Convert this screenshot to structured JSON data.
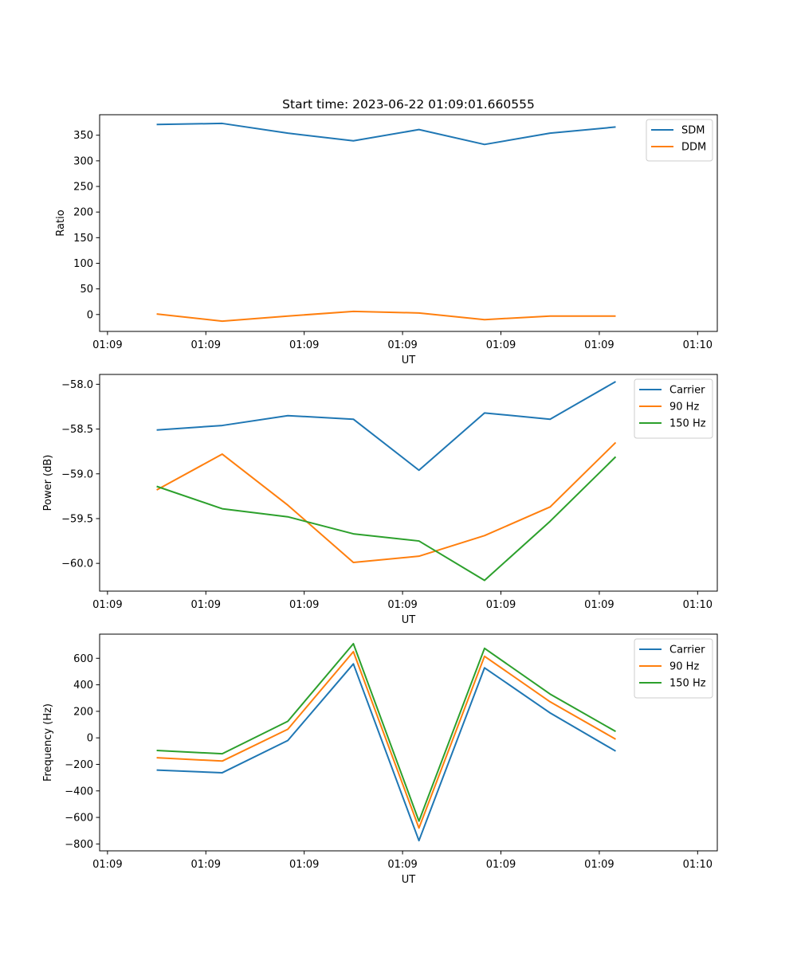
{
  "figure_title": "Start time: 2023-06-22 01:09:01.660555",
  "chart_data": [
    {
      "type": "line",
      "title": "Start time: 2023-06-22 01:09:01.660555",
      "xlabel": "UT",
      "ylabel": "Ratio",
      "x_tick_labels": [
        "01:09",
        "01:09",
        "01:09",
        "01:09",
        "01:09",
        "01:09",
        "01:10"
      ],
      "y_ticks": [
        0,
        50,
        100,
        150,
        200,
        250,
        300,
        350
      ],
      "y_tick_labels": [
        "0",
        "50",
        "100",
        "150",
        "200",
        "250",
        "300",
        "350"
      ],
      "xlim": [
        -0.12,
        9.3
      ],
      "ylim": [
        -33,
        390
      ],
      "x_tick_positions": [
        0,
        1.5,
        3,
        4.5,
        6,
        7.5,
        9
      ],
      "x": [
        0.75,
        1.75,
        2.75,
        3.75,
        4.75,
        5.75,
        6.75,
        7.75
      ],
      "legend_position": "upper right",
      "grid": false,
      "series": [
        {
          "name": "SDM",
          "color": "#1f77b4",
          "values": [
            371,
            373,
            354,
            339,
            361,
            332,
            354,
            366
          ]
        },
        {
          "name": "DDM",
          "color": "#ff7f0e",
          "values": [
            1,
            -13,
            -3,
            6,
            3,
            -10,
            -3,
            -3
          ]
        }
      ]
    },
    {
      "type": "line",
      "title": "",
      "xlabel": "UT",
      "ylabel": "Power (dB)",
      "x_tick_labels": [
        "01:09",
        "01:09",
        "01:09",
        "01:09",
        "01:09",
        "01:09",
        "01:10"
      ],
      "y_ticks": [
        -60.0,
        -59.5,
        -59.0,
        -58.5,
        -58.0
      ],
      "y_tick_labels": [
        "−60.0",
        "−59.5",
        "−59.0",
        "−58.5",
        "−58.0"
      ],
      "xlim": [
        -0.12,
        9.3
      ],
      "ylim": [
        -60.31,
        -57.89
      ],
      "x_tick_positions": [
        0,
        1.5,
        3,
        4.5,
        6,
        7.5,
        9
      ],
      "x": [
        0.75,
        1.75,
        2.75,
        3.75,
        4.75,
        5.75,
        6.75,
        7.75
      ],
      "legend_position": "upper right",
      "grid": false,
      "series": [
        {
          "name": "Carrier",
          "color": "#1f77b4",
          "values": [
            -58.51,
            -58.46,
            -58.35,
            -58.39,
            -58.96,
            -58.32,
            -58.39,
            -57.97
          ]
        },
        {
          "name": "90 Hz",
          "color": "#ff7f0e",
          "values": [
            -59.18,
            -58.78,
            -59.35,
            -59.99,
            -59.92,
            -59.69,
            -59.37,
            -58.65
          ]
        },
        {
          "name": "150 Hz",
          "color": "#2ca02c",
          "values": [
            -59.14,
            -59.39,
            -59.48,
            -59.67,
            -59.75,
            -60.19,
            -59.53,
            -58.81
          ]
        }
      ]
    },
    {
      "type": "line",
      "title": "",
      "xlabel": "UT",
      "ylabel": "Frequency (Hz)",
      "x_tick_labels": [
        "01:09",
        "01:09",
        "01:09",
        "01:09",
        "01:09",
        "01:09",
        "01:10"
      ],
      "y_ticks": [
        -800,
        -600,
        -400,
        -200,
        0,
        200,
        400,
        600
      ],
      "y_tick_labels": [
        "−800",
        "−600",
        "−400",
        "−200",
        "0",
        "200",
        "400",
        "600"
      ],
      "xlim": [
        -0.12,
        9.3
      ],
      "ylim": [
        -852,
        782
      ],
      "x_tick_positions": [
        0,
        1.5,
        3,
        4.5,
        6,
        7.5,
        9
      ],
      "x": [
        0.75,
        1.75,
        2.75,
        3.75,
        4.75,
        5.75,
        6.75,
        7.75
      ],
      "legend_position": "upper right",
      "grid": false,
      "series": [
        {
          "name": "Carrier",
          "color": "#1f77b4",
          "values": [
            -243,
            -263,
            -20,
            558,
            -775,
            528,
            188,
            -100
          ]
        },
        {
          "name": "90 Hz",
          "color": "#ff7f0e",
          "values": [
            -150,
            -175,
            65,
            650,
            -680,
            615,
            272,
            -10
          ]
        },
        {
          "name": "150 Hz",
          "color": "#2ca02c",
          "values": [
            -95,
            -120,
            125,
            710,
            -628,
            675,
            330,
            48
          ]
        }
      ]
    }
  ]
}
